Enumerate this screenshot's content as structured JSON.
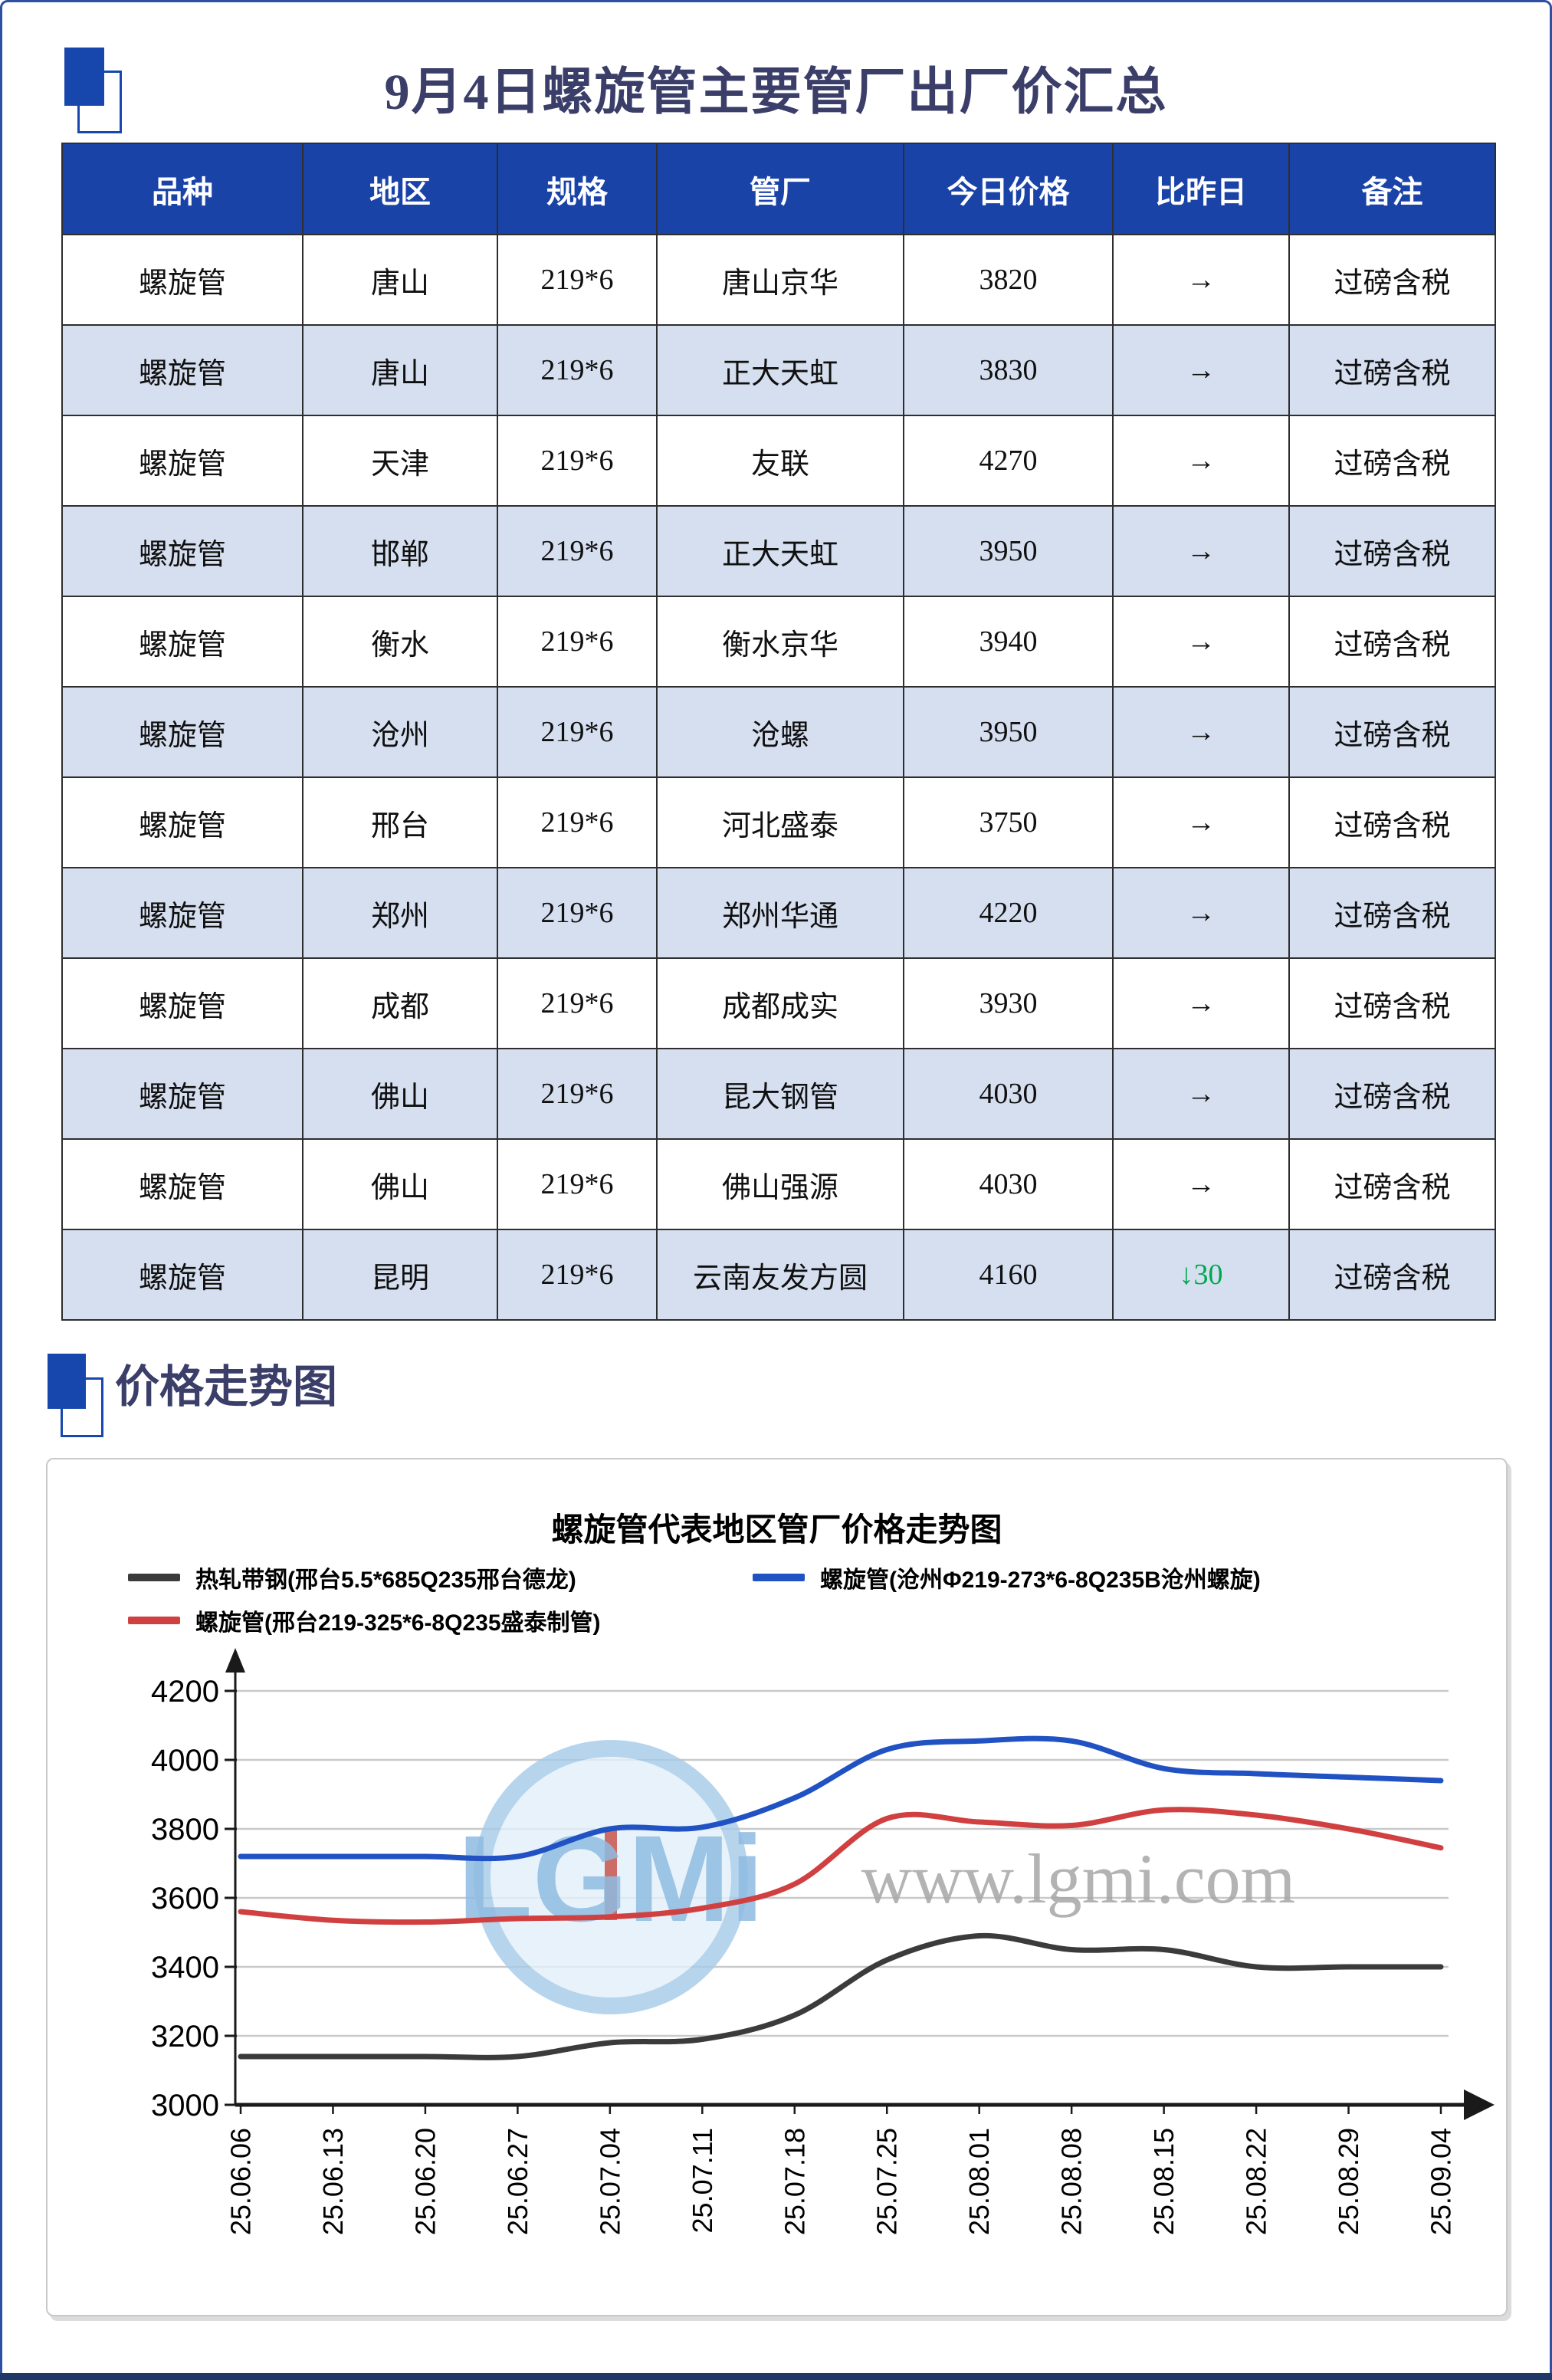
{
  "header": {
    "title": "9月4日螺旋管主要管厂出厂价汇总"
  },
  "sections": {
    "trend_title": "价格走势图"
  },
  "table": {
    "headers": [
      "品种",
      "地区",
      "规格",
      "管厂",
      "今日价格",
      "比昨日",
      "备注"
    ],
    "rows": [
      {
        "variety": "螺旋管",
        "region": "唐山",
        "spec": "219*6",
        "factory": "唐山京华",
        "price": "3820",
        "change": "→",
        "change_dir": "flat",
        "note": "过磅含税"
      },
      {
        "variety": "螺旋管",
        "region": "唐山",
        "spec": "219*6",
        "factory": "正大天虹",
        "price": "3830",
        "change": "→",
        "change_dir": "flat",
        "note": "过磅含税"
      },
      {
        "variety": "螺旋管",
        "region": "天津",
        "spec": "219*6",
        "factory": "友联",
        "price": "4270",
        "change": "→",
        "change_dir": "flat",
        "note": "过磅含税"
      },
      {
        "variety": "螺旋管",
        "region": "邯郸",
        "spec": "219*6",
        "factory": "正大天虹",
        "price": "3950",
        "change": "→",
        "change_dir": "flat",
        "note": "过磅含税"
      },
      {
        "variety": "螺旋管",
        "region": "衡水",
        "spec": "219*6",
        "factory": "衡水京华",
        "price": "3940",
        "change": "→",
        "change_dir": "flat",
        "note": "过磅含税"
      },
      {
        "variety": "螺旋管",
        "region": "沧州",
        "spec": "219*6",
        "factory": "沧螺",
        "price": "3950",
        "change": "→",
        "change_dir": "flat",
        "note": "过磅含税"
      },
      {
        "variety": "螺旋管",
        "region": "邢台",
        "spec": "219*6",
        "factory": "河北盛泰",
        "price": "3750",
        "change": "→",
        "change_dir": "flat",
        "note": "过磅含税"
      },
      {
        "variety": "螺旋管",
        "region": "郑州",
        "spec": "219*6",
        "factory": "郑州华通",
        "price": "4220",
        "change": "→",
        "change_dir": "flat",
        "note": "过磅含税"
      },
      {
        "variety": "螺旋管",
        "region": "成都",
        "spec": "219*6",
        "factory": "成都成实",
        "price": "3930",
        "change": "→",
        "change_dir": "flat",
        "note": "过磅含税"
      },
      {
        "variety": "螺旋管",
        "region": "佛山",
        "spec": "219*6",
        "factory": "昆大钢管",
        "price": "4030",
        "change": "→",
        "change_dir": "flat",
        "note": "过磅含税"
      },
      {
        "variety": "螺旋管",
        "region": "佛山",
        "spec": "219*6",
        "factory": "佛山强源",
        "price": "4030",
        "change": "→",
        "change_dir": "flat",
        "note": "过磅含税"
      },
      {
        "variety": "螺旋管",
        "region": "昆明",
        "spec": "219*6",
        "factory": "云南友发方圆",
        "price": "4160",
        "change": "↓30",
        "change_dir": "down",
        "note": "过磅含税"
      }
    ]
  },
  "chart_data": {
    "type": "line",
    "title": "螺旋管代表地区管厂价格走势图",
    "x": [
      "25.06.06",
      "25.06.13",
      "25.06.20",
      "25.06.27",
      "25.07.04",
      "25.07.11",
      "25.07.18",
      "25.07.25",
      "25.08.01",
      "25.08.08",
      "25.08.15",
      "25.08.22",
      "25.08.29",
      "25.09.04"
    ],
    "ylim": [
      3000,
      4200
    ],
    "y_ticks": [
      3000,
      3200,
      3400,
      3600,
      3800,
      4000,
      4200
    ],
    "grid": true,
    "legend_position": "top",
    "series": [
      {
        "name": "热轧带钢(邢台5.5*685Q235邢台德龙)",
        "color": "#3B3B3B",
        "values": [
          3140,
          3140,
          3140,
          3140,
          3180,
          3190,
          3260,
          3420,
          3490,
          3450,
          3450,
          3400,
          3400,
          3400
        ]
      },
      {
        "name": "螺旋管(邢台219-325*6-8Q235盛泰制管)",
        "color": "#D14040",
        "values": [
          3560,
          3535,
          3530,
          3540,
          3545,
          3570,
          3640,
          3830,
          3820,
          3810,
          3855,
          3840,
          3800,
          3745
        ]
      },
      {
        "name": "螺旋管(沧州Φ219-273*6-8Q235B沧州螺旋)",
        "color": "#2152C3",
        "values": [
          3720,
          3720,
          3720,
          3720,
          3800,
          3805,
          3890,
          4030,
          4055,
          4055,
          3975,
          3960,
          3950,
          3940
        ]
      }
    ],
    "watermark": {
      "logo_text": "LGMi",
      "site_text": "www.lgmi.com"
    }
  },
  "colors": {
    "header_bg": "#1A43A8",
    "stripe": "#D6DFF0",
    "accent": "#1747AD",
    "title_text": "#3A3E68",
    "down_green": "#00A84F",
    "page_border": "#2E4FA3",
    "bottom_bar": "#203864",
    "grid": "#C9C9C9",
    "axis": "#1A1A1A"
  }
}
